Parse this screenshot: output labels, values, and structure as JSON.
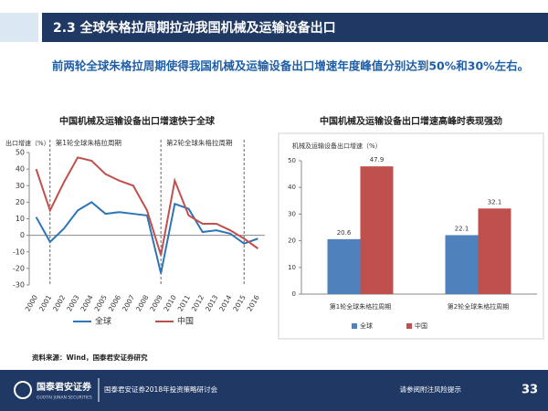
{
  "header": {
    "title": "2.3 全球朱格拉周期拉动我国机械及运输设备出口"
  },
  "summary": "前两轮全球朱格拉周期使得我国机械及运输设备出口增速年度峰值分别达到50%和30%左右。",
  "chart_data": [
    {
      "type": "line",
      "title": "中国机械及运输设备出口增速快于全球",
      "y_label": "出口增速（%）",
      "categories": [
        "2000",
        "2001",
        "2002",
        "2003",
        "2004",
        "2005",
        "2006",
        "2007",
        "2008",
        "2009",
        "2010",
        "2011",
        "2012",
        "2013",
        "2014",
        "2015",
        "2016"
      ],
      "series": [
        {
          "name": "全球",
          "color": "#2e75b6",
          "values": [
            11,
            -4,
            4,
            15,
            20,
            13,
            14,
            13,
            12,
            -23,
            19,
            16,
            2,
            3,
            1,
            -5,
            -2
          ]
        },
        {
          "name": "中国",
          "color": "#c0504d",
          "values": [
            40,
            15,
            32,
            47,
            45,
            37,
            33,
            30,
            15,
            -12,
            33,
            12,
            7,
            7,
            3,
            -2,
            -8
          ]
        }
      ],
      "ylim": [
        -30,
        50
      ],
      "yticks": [
        -30,
        -20,
        -10,
        0,
        10,
        20,
        30,
        40,
        50
      ],
      "cycle_markers": [
        "2001",
        "2009",
        "2015"
      ],
      "annotations": [
        {
          "text": "第1轮全球朱格拉周期",
          "x": "2001"
        },
        {
          "text": "第2轮全球朱格拉周期",
          "x": "2009"
        }
      ],
      "legend": "bottom"
    },
    {
      "type": "bar",
      "title": "中国机械及运输设备出口增速高峰时表现强劲",
      "y_label": "机械及运输设备出口增速（%）",
      "categories": [
        "第1轮全球朱格拉周期",
        "第2轮全球朱格拉周期"
      ],
      "series": [
        {
          "name": "全球",
          "color": "#4f81bd",
          "values": [
            20.6,
            22.1
          ]
        },
        {
          "name": "中国",
          "color": "#c0504d",
          "values": [
            47.9,
            32.1
          ]
        }
      ],
      "ylim": [
        0,
        50
      ],
      "yticks": [
        0,
        10,
        20,
        30,
        40,
        50
      ],
      "data_labels": true,
      "legend": "bottom"
    }
  ],
  "source": "资料来源：Wind，国泰君安证券研究",
  "footer": {
    "logo": "国泰君安证券",
    "logo_en": "GUOTAI JUNAN SECURITIES",
    "event": "国泰君安证券2018年投资策略研讨会",
    "disclaimer": "请参阅附注风险提示",
    "page": "33"
  }
}
